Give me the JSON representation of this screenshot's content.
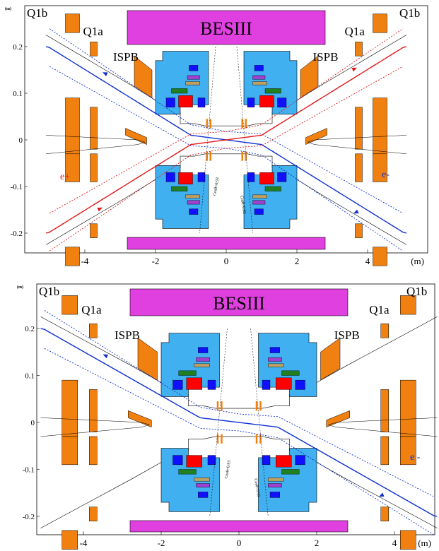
{
  "colors": {
    "besiii": "#e040e0",
    "quad": "#f08010",
    "detector": "#40b0f0",
    "electron": "#1030d0",
    "positron": "#e01818",
    "red_block": "#ff0000",
    "blue_block": "#1010ff",
    "purple_block": "#a040d0",
    "green_block": "#208020",
    "tan_block": "#c0a060"
  },
  "panels": [
    {
      "id": "top",
      "labels": {
        "besiii": "BESIII",
        "q1b_left": "Q1b",
        "q1b_right": "Q1b",
        "q1a_left": "Q1a",
        "q1a_right": "Q1a",
        "ispb_left": "ISPB",
        "ispb_right": "ISPB",
        "positron": "e+",
        "electron": "e-",
        "unit_y": "(m)",
        "unit_x": "(m)",
        "cos_left": "Cosθ=0.93",
        "cos_right": "Cosθ=0.93"
      },
      "x_ticks": [
        "-4",
        "-2",
        "0",
        "2",
        "4"
      ],
      "y_ticks": [
        "0.2",
        "0.1",
        "0",
        "-0.1",
        "-0.2"
      ],
      "beams": [
        "electron",
        "positron"
      ]
    },
    {
      "id": "bottom",
      "labels": {
        "besiii": "BESIII",
        "q1b_left": "Q1b",
        "q1b_right": "Q1b",
        "q1a_left": "Q1a",
        "q1a_right": "Q1a",
        "ispb_left": "ISPB",
        "ispb_right": "ISPB",
        "electron": "e -",
        "unit_y": "(m)",
        "unit_x": "(m)",
        "cos_left": "Cosθ=0.93",
        "cos_right": "Cosθ=0.93"
      },
      "x_ticks": [
        "-4",
        "-2",
        "0",
        "2",
        "4"
      ],
      "y_ticks": [
        "0.2",
        "0.1",
        "0",
        "-0.1",
        "-0.2"
      ],
      "beams": [
        "electron"
      ]
    }
  ]
}
